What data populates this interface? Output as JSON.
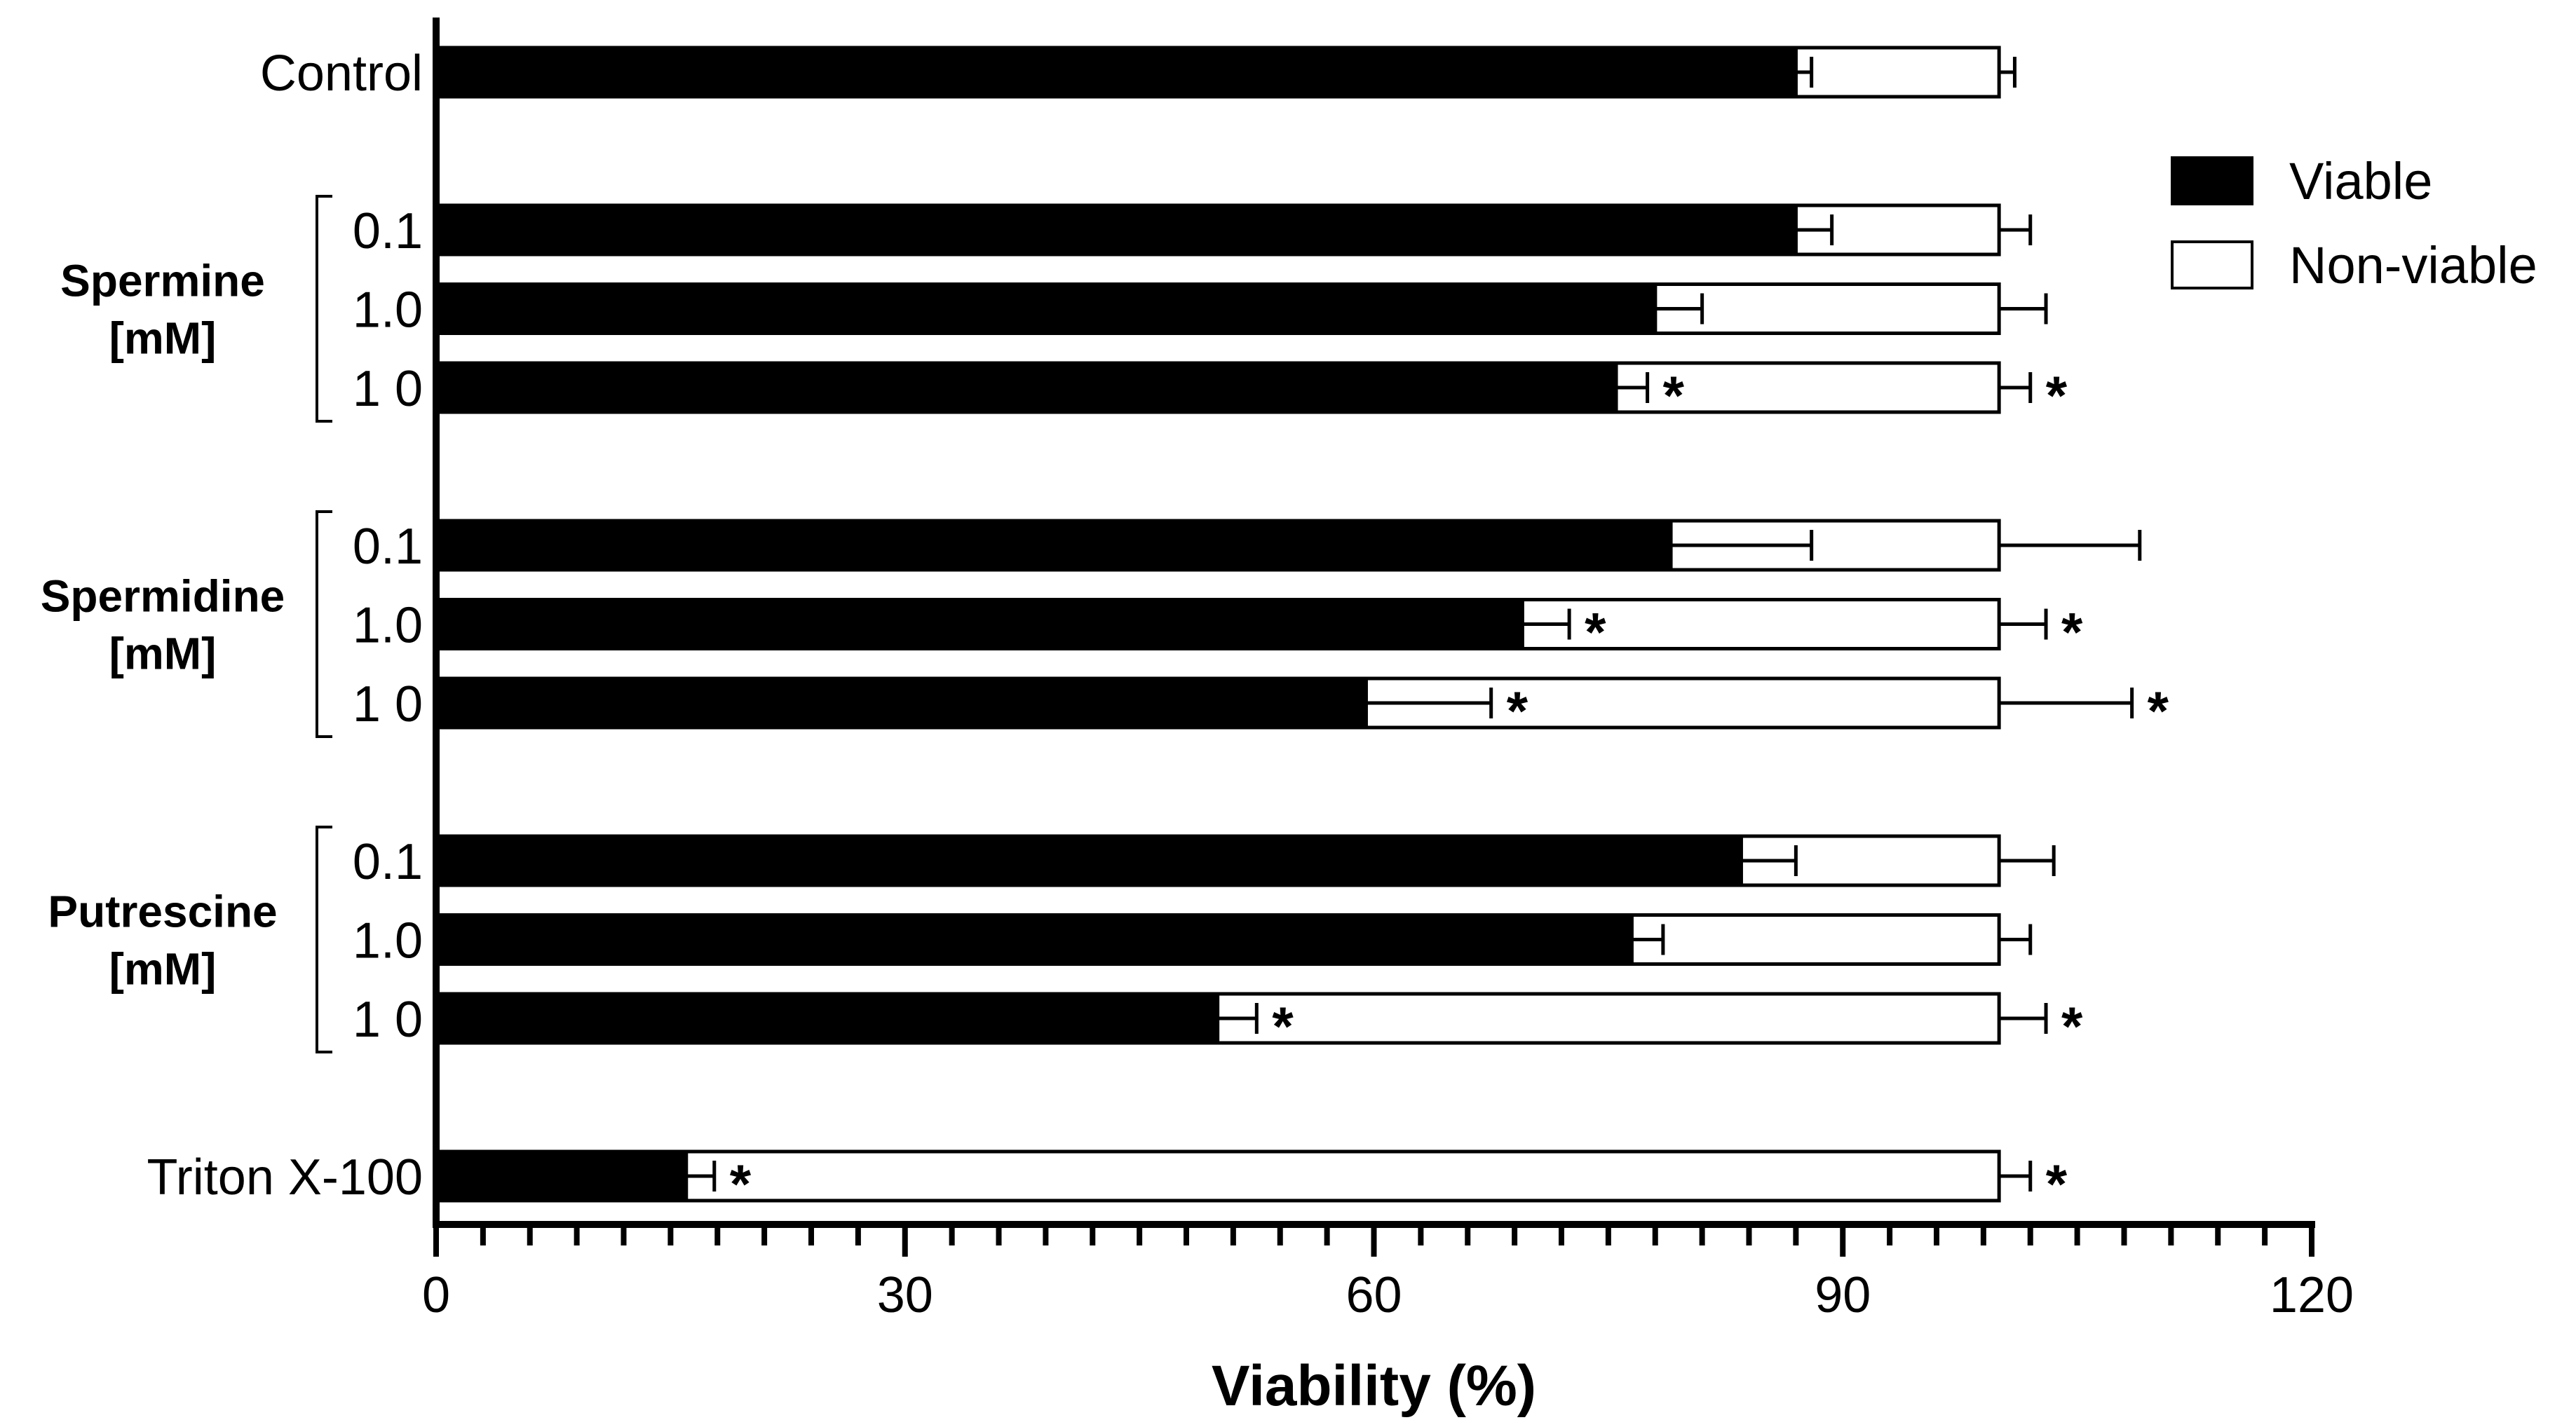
{
  "chart_data": {
    "type": "bar",
    "orientation": "horizontal",
    "stacked": true,
    "title": "",
    "xlabel": "Viability (%)",
    "ylabel": "",
    "xlim": [
      0,
      120
    ],
    "xticks": [
      "0",
      "30",
      "60",
      "90",
      "120"
    ],
    "grid": false,
    "legend": {
      "position": "top-right",
      "entries": [
        {
          "name": "Viable",
          "color": "#000000"
        },
        {
          "name": "Non-viable",
          "color": "#ffffff"
        }
      ]
    },
    "groups": [
      {
        "label": "",
        "label_line2": ""
      },
      {
        "label": "Spermine",
        "label_line2": "[mM]"
      },
      {
        "label": "Spermidine",
        "label_line2": "[mM]"
      },
      {
        "label": "Putrescine",
        "label_line2": "[mM]"
      },
      {
        "label": "",
        "label_line2": ""
      }
    ],
    "categories": [
      "Control",
      "0.1",
      "1.0",
      "1 0",
      "0.1",
      "1.0",
      "1 0",
      "0.1",
      "1.0",
      "1 0",
      "Triton X-100"
    ],
    "category_group": [
      0,
      1,
      1,
      1,
      2,
      2,
      2,
      3,
      3,
      3,
      4
    ],
    "series": [
      {
        "name": "Viable",
        "values": [
          87,
          87,
          78,
          75.5,
          79,
          69.5,
          59.5,
          83.5,
          76.5,
          50,
          16
        ],
        "error": [
          1,
          2.3,
          3,
          2,
          9,
          3,
          8,
          3.5,
          2,
          2.5,
          1.8
        ],
        "significant": [
          false,
          false,
          false,
          true,
          false,
          true,
          true,
          false,
          false,
          true,
          true
        ]
      },
      {
        "name": "Non-viable",
        "values": [
          13,
          13,
          22,
          24.5,
          21,
          30.5,
          40.5,
          16.5,
          23.5,
          50,
          84
        ],
        "error": [
          1,
          2,
          3,
          2,
          9,
          3,
          8.5,
          3.5,
          2,
          3,
          2
        ],
        "significant": [
          false,
          false,
          false,
          true,
          false,
          true,
          true,
          false,
          false,
          true,
          true
        ]
      }
    ],
    "annotation_symbol": "*"
  }
}
